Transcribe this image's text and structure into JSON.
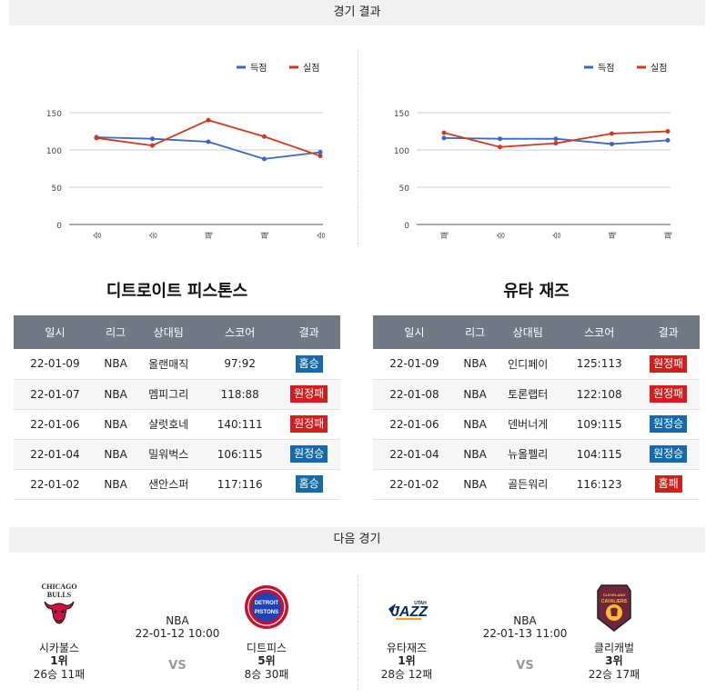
{
  "sections": {
    "results_title": "경기 결과",
    "next_title": "다음 경기"
  },
  "legend": {
    "score": "득점",
    "conceded": "실점"
  },
  "colors": {
    "score": "#3a66c4",
    "conceded": "#d0391f",
    "win": "#1569ad",
    "loss": "#d41e1e",
    "header": "#6f7a84"
  },
  "chart_data": [
    {
      "type": "line",
      "categories": [
        "승",
        "승",
        "패",
        "패",
        "승"
      ],
      "series": [
        {
          "name": "득점",
          "values": [
            117,
            115,
            111,
            88,
            97
          ]
        },
        {
          "name": "실점",
          "values": [
            116,
            106,
            140,
            118,
            92
          ]
        }
      ],
      "yticks": [
        0,
        50,
        100,
        150
      ],
      "ylim": [
        0,
        150
      ],
      "grid": true,
      "legend_position": "top-right"
    },
    {
      "type": "line",
      "categories": [
        "패",
        "승",
        "승",
        "패",
        "패"
      ],
      "series": [
        {
          "name": "득점",
          "values": [
            116,
            115,
            115,
            108,
            113
          ]
        },
        {
          "name": "실점",
          "values": [
            123,
            104,
            109,
            122,
            125
          ]
        }
      ],
      "yticks": [
        0,
        50,
        100,
        150
      ],
      "ylim": [
        0,
        150
      ],
      "grid": true,
      "legend_position": "top-right"
    }
  ],
  "table_headers": [
    "일시",
    "리그",
    "상대팀",
    "스코어",
    "결과"
  ],
  "teams": [
    {
      "name": "디트로이트 피스톤스",
      "rows": [
        {
          "date": "22-01-09",
          "league": "NBA",
          "opponent": "올랜매직",
          "score": "97:92",
          "result": "홈승",
          "win": true
        },
        {
          "date": "22-01-07",
          "league": "NBA",
          "opponent": "멤피그리",
          "score": "118:88",
          "result": "원정패",
          "win": false
        },
        {
          "date": "22-01-06",
          "league": "NBA",
          "opponent": "샬럿호네",
          "score": "140:111",
          "result": "원정패",
          "win": false
        },
        {
          "date": "22-01-04",
          "league": "NBA",
          "opponent": "밀워벅스",
          "score": "106:115",
          "result": "원정승",
          "win": true
        },
        {
          "date": "22-01-02",
          "league": "NBA",
          "opponent": "샌안스퍼",
          "score": "117:116",
          "result": "홈승",
          "win": true
        }
      ]
    },
    {
      "name": "유타 재즈",
      "rows": [
        {
          "date": "22-01-09",
          "league": "NBA",
          "opponent": "인디페이",
          "score": "125:113",
          "result": "원정패",
          "win": false
        },
        {
          "date": "22-01-08",
          "league": "NBA",
          "opponent": "토론랩터",
          "score": "122:108",
          "result": "원정패",
          "win": false
        },
        {
          "date": "22-01-06",
          "league": "NBA",
          "opponent": "덴버너게",
          "score": "109:115",
          "result": "원정승",
          "win": true
        },
        {
          "date": "22-01-04",
          "league": "NBA",
          "opponent": "뉴올펠리",
          "score": "104:115",
          "result": "원정승",
          "win": true
        },
        {
          "date": "22-01-02",
          "league": "NBA",
          "opponent": "골든워리",
          "score": "116:123",
          "result": "홈패",
          "win": false
        }
      ]
    }
  ],
  "next_games": [
    {
      "league": "NBA",
      "datetime": "22-01-12 10:00",
      "vs": "VS",
      "home": {
        "name": "시카불스",
        "rank": "1위",
        "record": "26승 11패",
        "logo": "chicago-bulls-logo"
      },
      "away": {
        "name": "디트피스",
        "rank": "5위",
        "record": "8승 30패",
        "logo": "detroit-pistons-logo"
      }
    },
    {
      "league": "NBA",
      "datetime": "22-01-13 11:00",
      "vs": "VS",
      "home": {
        "name": "유타재즈",
        "rank": "1위",
        "record": "28승 12패",
        "logo": "utah-jazz-logo"
      },
      "away": {
        "name": "클리캐벌",
        "rank": "3위",
        "record": "22승 17패",
        "logo": "cleveland-cavaliers-logo"
      }
    }
  ],
  "logo_text": {
    "bulls_top": "CHICAGO",
    "bulls_bottom": "BULLS",
    "pistons_top": "DETROIT",
    "pistons_bottom": "PISTONS",
    "jazz": "JAZZ",
    "jazz_small": "UTAH",
    "cavs_top": "CLEVELAND",
    "cavs_mid": "CAVALIERS"
  }
}
